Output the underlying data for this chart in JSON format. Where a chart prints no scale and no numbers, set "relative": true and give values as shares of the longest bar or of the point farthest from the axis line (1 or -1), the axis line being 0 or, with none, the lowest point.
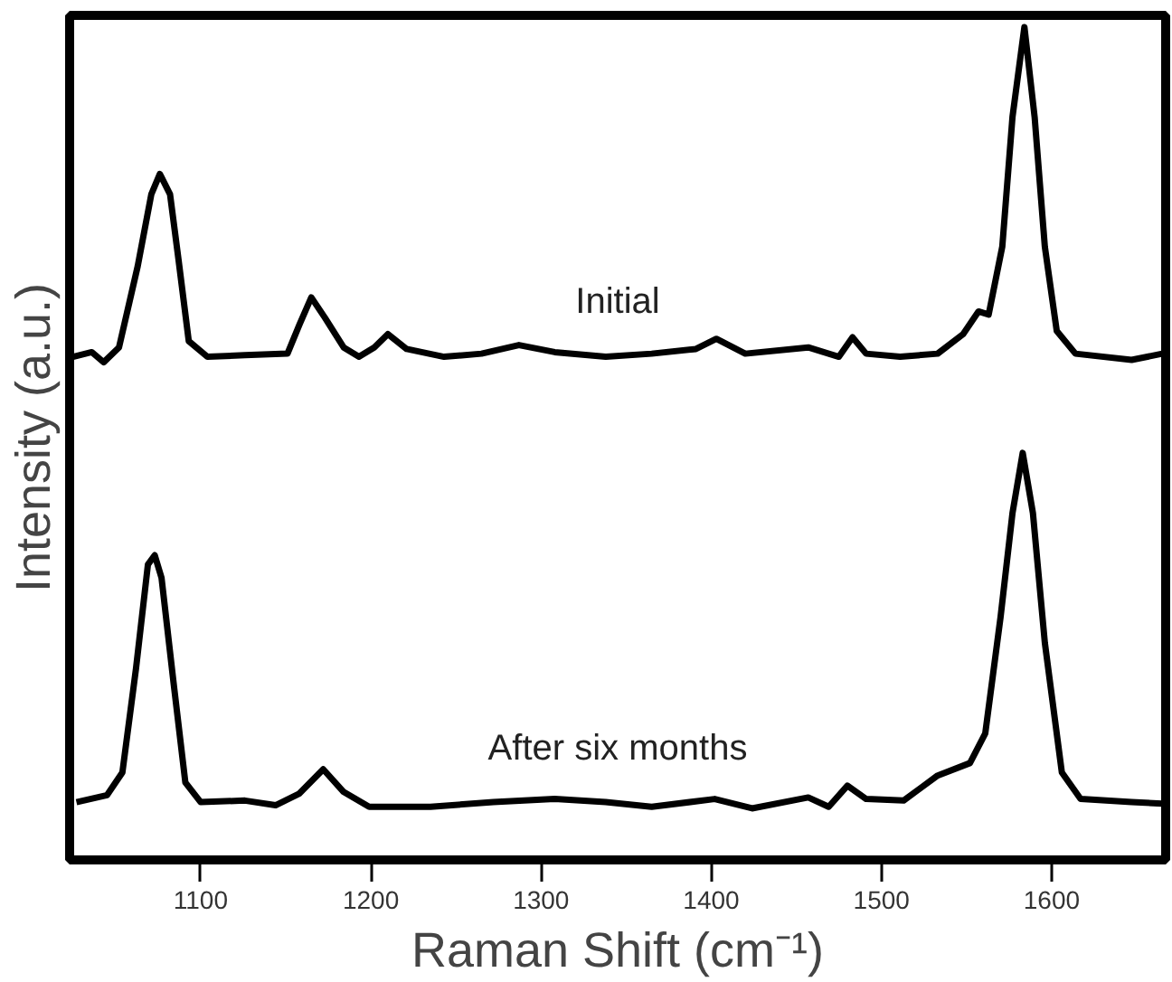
{
  "chart_data": {
    "type": "line",
    "relative": true,
    "xlabel": "Raman Shift (cm⁻¹)",
    "ylabel": "Intensity (a.u.)",
    "xlim": [
      1023,
      1667
    ],
    "xticks": [
      1100,
      1200,
      1300,
      1400,
      1500,
      1600
    ],
    "tick_labels": "x",
    "grid": false,
    "marker": "none",
    "line_style": "solid",
    "series": [
      {
        "name": "Initial",
        "color": "#000000",
        "x": [
          1025,
          1036,
          1043,
          1052,
          1063,
          1071,
          1076,
          1082,
          1087,
          1093,
          1104,
          1126,
          1151,
          1158,
          1165,
          1173,
          1184,
          1193,
          1202,
          1210,
          1221,
          1243,
          1265,
          1287,
          1308,
          1338,
          1365,
          1391,
          1403,
          1420,
          1457,
          1475,
          1483,
          1491,
          1511,
          1533,
          1548,
          1557,
          1563,
          1571,
          1577,
          1584,
          1590,
          1596,
          1603,
          1614,
          1647,
          1665
        ],
        "values": [
          0.578,
          0.584,
          0.571,
          0.59,
          0.694,
          0.786,
          0.812,
          0.786,
          0.702,
          0.598,
          0.578,
          0.58,
          0.582,
          0.619,
          0.654,
          0.628,
          0.59,
          0.578,
          0.59,
          0.607,
          0.588,
          0.578,
          0.582,
          0.593,
          0.584,
          0.578,
          0.582,
          0.588,
          0.601,
          0.582,
          0.59,
          0.578,
          0.603,
          0.582,
          0.578,
          0.582,
          0.607,
          0.636,
          0.632,
          0.719,
          0.885,
          1.0,
          0.885,
          0.719,
          0.611,
          0.582,
          0.574,
          0.582
        ]
      },
      {
        "name": "After six months",
        "color": "#000000",
        "x": [
          1027,
          1045,
          1054,
          1062,
          1069,
          1073,
          1077,
          1084,
          1091,
          1100,
          1126,
          1144,
          1158,
          1172,
          1184,
          1199,
          1235,
          1272,
          1308,
          1338,
          1365,
          1402,
          1424,
          1457,
          1469,
          1480,
          1491,
          1513,
          1533,
          1552,
          1561,
          1570,
          1577,
          1583,
          1589,
          1596,
          1606,
          1617,
          1647,
          1665
        ],
        "values": [
          0.008,
          0.017,
          0.046,
          0.179,
          0.312,
          0.324,
          0.295,
          0.162,
          0.033,
          0.008,
          0.01,
          0.004,
          0.019,
          0.05,
          0.021,
          0.002,
          0.002,
          0.008,
          0.012,
          0.008,
          0.002,
          0.012,
          0.0,
          0.014,
          0.002,
          0.029,
          0.012,
          0.01,
          0.042,
          0.058,
          0.096,
          0.245,
          0.378,
          0.455,
          0.378,
          0.212,
          0.046,
          0.012,
          0.008,
          0.006
        ]
      }
    ]
  }
}
